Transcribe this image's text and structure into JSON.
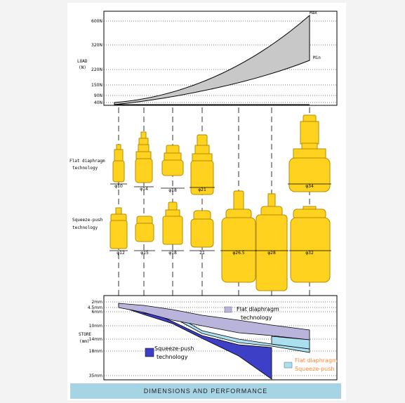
{
  "load_chart": {
    "axis_title": "LOAD",
    "axis_unit": "(N)",
    "ticks": [
      "600N",
      "320N",
      "220N",
      "150N",
      "90N",
      "40N"
    ],
    "max_label": "Max",
    "min_label": "Min",
    "colors": {
      "band": "#c8c8c8"
    }
  },
  "flat": {
    "label_line1": "Flat diaphragm",
    "label_line2": "technology",
    "sizes": [
      "φ10",
      "φ14",
      "φ18",
      "φ21",
      "φ34"
    ]
  },
  "squeeze": {
    "label_line1": "Squeeze-push",
    "label_line2": "technology",
    "sizes": [
      "φ12",
      "φ15",
      "φ18",
      "21",
      "φ26.5",
      "φ28",
      "φ32"
    ]
  },
  "stroke_chart": {
    "axis_title": "STORE",
    "axis_unit": "(mm)",
    "ticks": [
      "2mm",
      "4.5mm",
      "6mm",
      "10mm",
      "14mm",
      "18mm",
      "35mm"
    ],
    "flat_label_line1": "Flat diaphragm",
    "flat_label_line2": "technology",
    "squeeze_label_line1": "Squeeze-push",
    "squeeze_label_line2": "technology",
    "legend_line1": "Flat diaphragm",
    "legend_line2": "Squeeze-push",
    "colors": {
      "squeeze": "#3d3fc7",
      "flat": "#b9b4dc",
      "cyan": "#a9dfee",
      "legend_text": "#ff8a3a"
    }
  },
  "colors": {
    "part": "#ffd21f",
    "part_stroke": "#b58d00"
  },
  "banner": "DIMENSIONS AND PERFORMANCE"
}
